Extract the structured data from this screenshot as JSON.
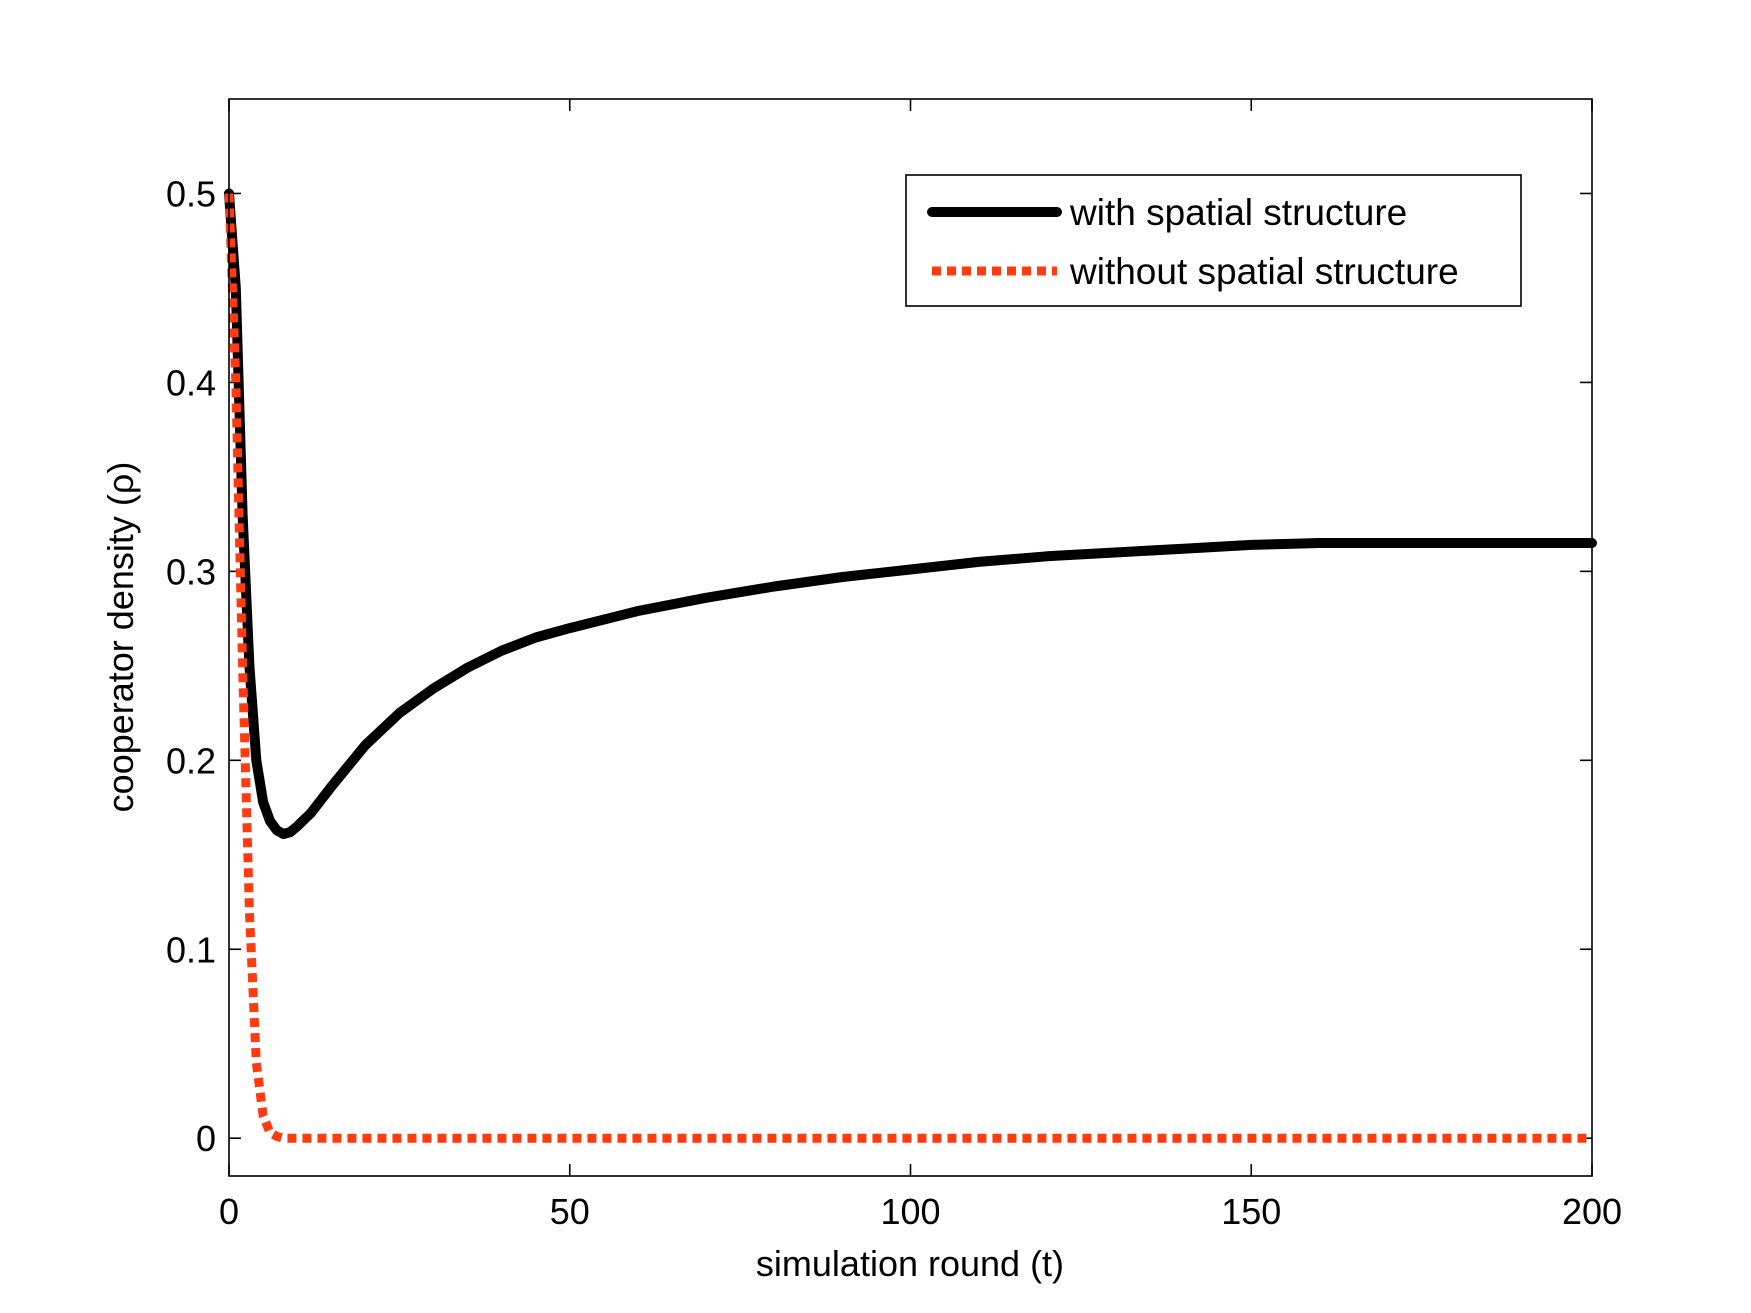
{
  "chart_data": {
    "type": "line",
    "title": "",
    "xlabel": "simulation round (t)",
    "ylabel": "cooperator density (ρ)",
    "xlim": [
      0,
      200
    ],
    "ylim": [
      -0.02,
      0.55
    ],
    "xticks": [
      0,
      50,
      100,
      150,
      200
    ],
    "xtick_labels": [
      "0",
      "50",
      "100",
      "150",
      "200"
    ],
    "yticks": [
      0,
      0.1,
      0.2,
      0.3,
      0.4,
      0.5
    ],
    "ytick_labels": [
      "0",
      "0.1",
      "0.2",
      "0.3",
      "0.4",
      "0.5"
    ],
    "grid": false,
    "legend_position": "top-right",
    "series": [
      {
        "name": "with spatial structure",
        "color": "#000000",
        "style": "solid",
        "x": [
          0,
          1,
          2,
          3,
          4,
          5,
          6,
          7,
          8,
          9,
          10,
          12,
          15,
          20,
          25,
          30,
          35,
          40,
          45,
          50,
          60,
          70,
          80,
          90,
          100,
          110,
          120,
          130,
          140,
          150,
          160,
          170,
          180,
          190,
          200
        ],
        "y": [
          0.5,
          0.45,
          0.33,
          0.25,
          0.2,
          0.178,
          0.168,
          0.163,
          0.161,
          0.162,
          0.165,
          0.172,
          0.186,
          0.208,
          0.225,
          0.238,
          0.249,
          0.258,
          0.265,
          0.27,
          0.279,
          0.286,
          0.292,
          0.297,
          0.301,
          0.305,
          0.308,
          0.31,
          0.312,
          0.314,
          0.315,
          0.315,
          0.315,
          0.315,
          0.315
        ]
      },
      {
        "name": "without spatial structure",
        "color": "#ff3b12",
        "style": "dotted",
        "x": [
          0,
          1,
          2,
          3,
          4,
          5,
          6,
          7,
          8,
          10,
          20,
          50,
          100,
          150,
          200
        ],
        "y": [
          0.5,
          0.4,
          0.25,
          0.12,
          0.04,
          0.012,
          0.003,
          0.001,
          0,
          0,
          0,
          0,
          0,
          0,
          0
        ]
      }
    ]
  }
}
